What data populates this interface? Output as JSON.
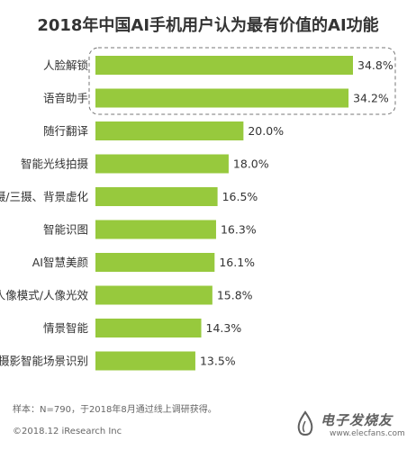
{
  "chart_data": {
    "type": "bar",
    "orientation": "horizontal",
    "title": "2018年中国AI手机用户认为最有价值的AI功能",
    "categories": [
      "人脸解锁",
      "语音助手",
      "随行翻译",
      "智能光线拍摄",
      "AI双摄/三摄、背景虚化",
      "智能识图",
      "AI智慧美颜",
      "AI人像模式/人像光效",
      "情景智能",
      "AI摄影智能场景识别"
    ],
    "values": [
      34.8,
      34.2,
      20.0,
      18.0,
      16.5,
      16.3,
      16.1,
      15.8,
      14.3,
      13.5
    ],
    "value_labels": [
      "34.8%",
      "34.2%",
      "20.0%",
      "18.0%",
      "16.5%",
      "16.3%",
      "16.1%",
      "15.8%",
      "14.3%",
      "13.5%"
    ],
    "unit": "%",
    "highlighted_categories": [
      "人脸解锁",
      "语音助手"
    ],
    "xlim": [
      0,
      34.8
    ],
    "grid": false,
    "legend": "none",
    "colors": {
      "bar": "#97c93d",
      "highlight_border": "#777777",
      "label": "#333333"
    }
  },
  "footer": {
    "note": "样本：N=790，于2018年8月通过线上调研获得。",
    "source": "©2018.12 iResearch Inc"
  },
  "watermark": {
    "brand": "电子发烧友",
    "url": "www.elecfans.com"
  }
}
